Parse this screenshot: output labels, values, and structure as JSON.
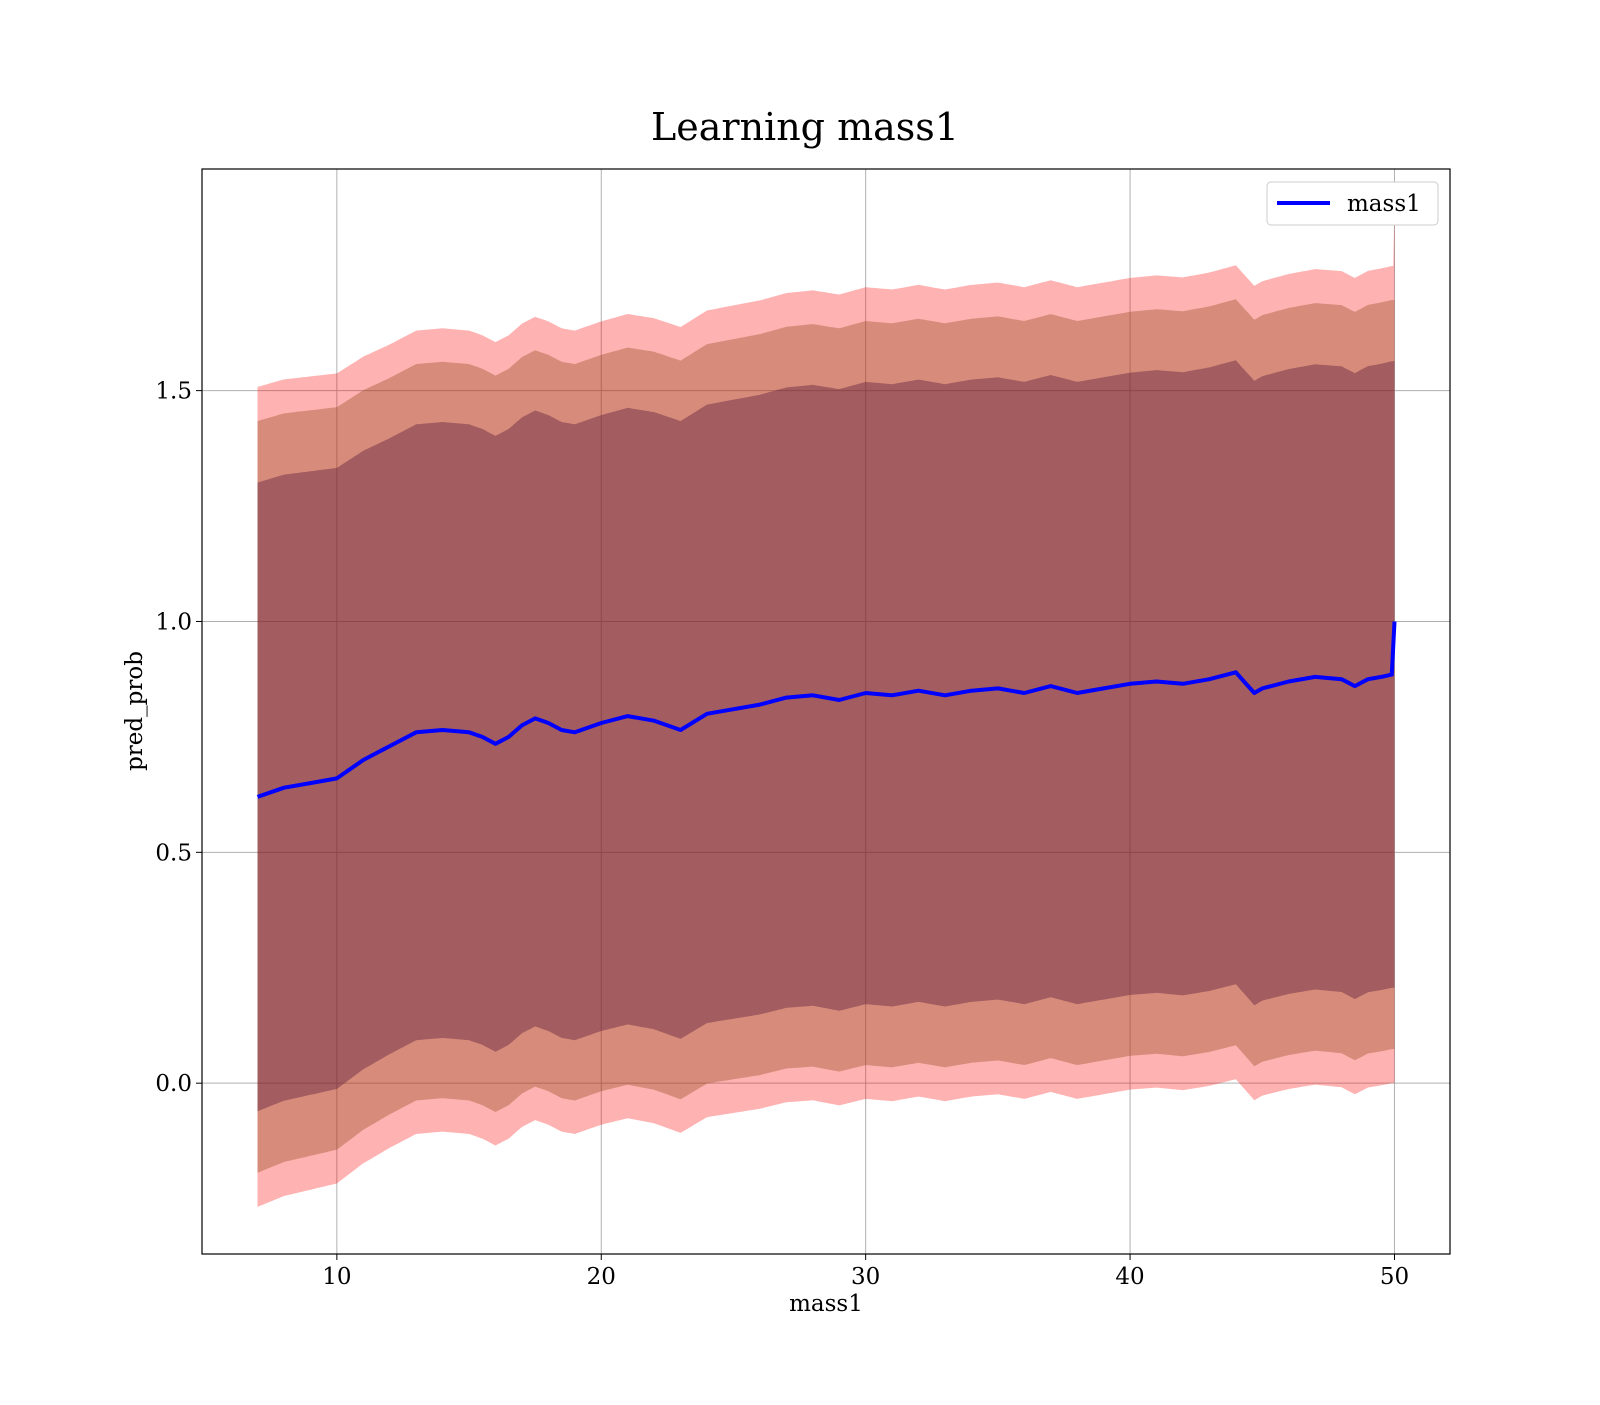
{
  "chart_data": {
    "type": "line",
    "title": "Learning mass1",
    "xlabel": "mass1",
    "ylabel": "pred_prob",
    "xlim": [
      4.9,
      52.1
    ],
    "ylim": [
      -0.37,
      1.98
    ],
    "x_ticks": [
      10,
      20,
      30,
      40,
      50
    ],
    "y_ticks": [
      0.0,
      0.5,
      1.0,
      1.5
    ],
    "x_tick_labels": [
      "10",
      "20",
      "30",
      "40",
      "50"
    ],
    "y_tick_labels": [
      "0.0",
      "0.5",
      "1.0",
      "1.5"
    ],
    "grid": true,
    "legend": {
      "position": "top-right",
      "entries": [
        "mass1"
      ]
    },
    "x": [
      7.0,
      8.0,
      9.0,
      10.0,
      11.0,
      12.0,
      13.0,
      14.0,
      15.0,
      15.5,
      16.0,
      16.5,
      17.0,
      17.5,
      18.0,
      18.5,
      19.0,
      20.0,
      21.0,
      22.0,
      22.5,
      23.0,
      24.0,
      25.0,
      26.0,
      27.0,
      28.0,
      29.0,
      30.0,
      31.0,
      32.0,
      33.0,
      34.0,
      35.0,
      36.0,
      37.0,
      38.0,
      39.0,
      40.0,
      41.0,
      42.0,
      43.0,
      44.0,
      44.7,
      45.0,
      46.0,
      47.0,
      48.0,
      48.5,
      49.0,
      49.5,
      49.9,
      50.0
    ],
    "series": [
      {
        "name": "mass1",
        "color": "#0000ff",
        "values": [
          0.62,
          0.64,
          0.65,
          0.66,
          0.7,
          0.73,
          0.76,
          0.765,
          0.76,
          0.75,
          0.735,
          0.75,
          0.775,
          0.79,
          0.78,
          0.765,
          0.76,
          0.78,
          0.795,
          0.785,
          0.775,
          0.765,
          0.8,
          0.81,
          0.82,
          0.835,
          0.84,
          0.83,
          0.845,
          0.84,
          0.85,
          0.84,
          0.85,
          0.855,
          0.845,
          0.86,
          0.845,
          0.855,
          0.865,
          0.87,
          0.865,
          0.875,
          0.89,
          0.845,
          0.855,
          0.87,
          0.88,
          0.875,
          0.86,
          0.875,
          0.88,
          0.885,
          1.0
        ]
      }
    ],
    "bands": [
      {
        "color": "#ff0000",
        "opacity": 0.3,
        "sigma_multiplier": 3.0,
        "center_at_start": 0.62,
        "center_at_end": 0.885
      },
      {
        "color": "#8b4513",
        "opacity": 0.35,
        "sigma_multiplier": 2.75
      },
      {
        "color": "#5a1a3a",
        "opacity": 0.42,
        "sigma_multiplier": 2.3
      }
    ],
    "band_sigma": {
      "x": [
        7.0,
        12.0,
        20.0,
        30.0,
        40.0,
        50.0
      ],
      "values": [
        0.296,
        0.29,
        0.29,
        0.293,
        0.293,
        0.295
      ]
    },
    "band_end_spike": {
      "upper": 1.9,
      "lower": 0.0
    }
  }
}
